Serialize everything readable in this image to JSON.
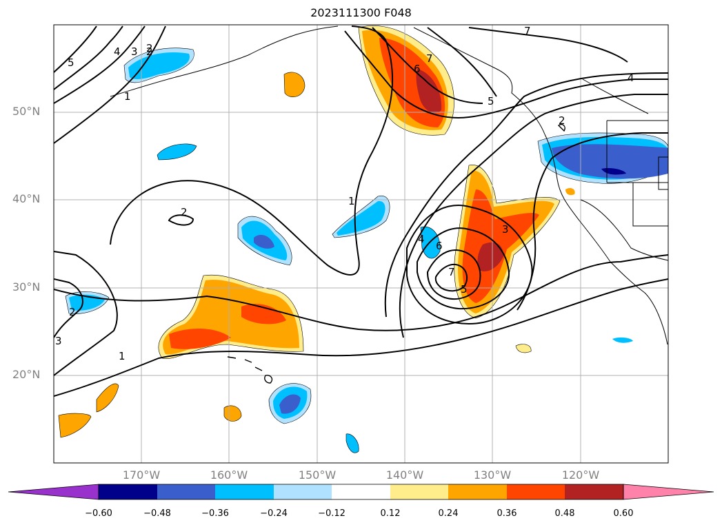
{
  "title": "2023111300 F048",
  "lat_labels": [
    "50°N",
    "40°N",
    "30°N",
    "20°N"
  ],
  "lon_labels": [
    "170°W",
    "160°W",
    "150°W",
    "140°W",
    "130°W",
    "120°W"
  ],
  "colorbar": {
    "ticks": [
      "−0.60",
      "−0.48",
      "−0.36",
      "−0.24",
      "−0.12",
      "0.12",
      "0.24",
      "0.36",
      "0.48",
      "0.60"
    ],
    "colors": [
      "#9932cc",
      "#00008b",
      "#3a5fcd",
      "#00bfff",
      "#b0e2ff",
      "#ffffff",
      "#ffec8b",
      "#ffa500",
      "#ff4500",
      "#b22222",
      "#ff82ab",
      "#ff82ab"
    ]
  },
  "contour_labels": [
    "5",
    "4",
    "3",
    "2",
    "1",
    "6",
    "7",
    "7",
    "4",
    "5",
    "2",
    "2",
    "1",
    "1",
    "2",
    "3",
    "4",
    "6",
    "7",
    "5",
    "3",
    "2"
  ]
}
